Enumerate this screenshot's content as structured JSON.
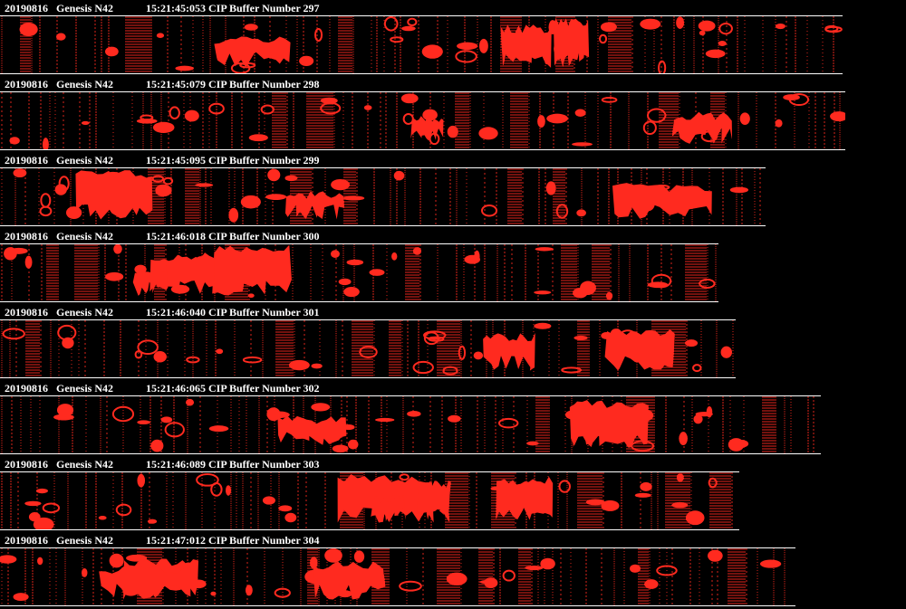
{
  "colors": {
    "background": "#000000",
    "particle": "#ff2a1f",
    "text": "#ffffff",
    "frame": "#ffffff"
  },
  "buffers": [
    {
      "date": "20190816",
      "probe": "Genesis N42",
      "time": "15:21:45:053",
      "label": "CIP Buffer Number 297",
      "number": 297
    },
    {
      "date": "20190816",
      "probe": "Genesis N42",
      "time": "15:21:45:079",
      "label": "CIP Buffer Number 298",
      "number": 298
    },
    {
      "date": "20190816",
      "probe": "Genesis N42",
      "time": "15:21:45:095",
      "label": "CIP Buffer Number 299",
      "number": 299
    },
    {
      "date": "20190816",
      "probe": "Genesis N42",
      "time": "15:21:46:018",
      "label": "CIP Buffer Number 300",
      "number": 300
    },
    {
      "date": "20190816",
      "probe": "Genesis N42",
      "time": "15:21:46:040",
      "label": "CIP Buffer Number 301",
      "number": 301
    },
    {
      "date": "20190816",
      "probe": "Genesis N42",
      "time": "15:21:46:065",
      "label": "CIP Buffer Number 302",
      "number": 302
    },
    {
      "date": "20190816",
      "probe": "Genesis N42",
      "time": "15:21:46:089",
      "label": "CIP Buffer Number 303",
      "number": 303
    },
    {
      "date": "20190816",
      "probe": "Genesis N42",
      "time": "15:21:47:012",
      "label": "CIP Buffer Number 304",
      "number": 304
    }
  ]
}
